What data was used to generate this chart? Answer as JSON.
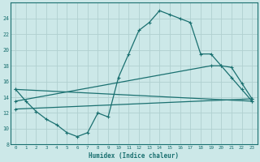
{
  "xlabel": "Humidex (Indice chaleur)",
  "xlim": [
    -0.5,
    23.5
  ],
  "ylim": [
    8,
    26
  ],
  "yticks": [
    8,
    10,
    12,
    14,
    16,
    18,
    20,
    22,
    24
  ],
  "xticks": [
    0,
    1,
    2,
    3,
    4,
    5,
    6,
    7,
    8,
    9,
    10,
    11,
    12,
    13,
    14,
    15,
    16,
    17,
    18,
    19,
    20,
    21,
    22,
    23
  ],
  "bg_color": "#cce8e8",
  "grid_color": "#b0d0d0",
  "line_color": "#1a7070",
  "curve_x": [
    0,
    1,
    2,
    3,
    4,
    5,
    6,
    7,
    8,
    9,
    10,
    11,
    12,
    13,
    14,
    15,
    16,
    17,
    18,
    19,
    20,
    21,
    22,
    23
  ],
  "curve_y": [
    15.0,
    13.5,
    12.2,
    11.2,
    10.5,
    9.5,
    9.0,
    9.5,
    12.0,
    11.5,
    16.5,
    19.5,
    22.5,
    23.5,
    25.0,
    24.5,
    24.0,
    23.5,
    19.5,
    19.5,
    18.0,
    16.5,
    15.0,
    13.5
  ],
  "line1_x": [
    0,
    23
  ],
  "line1_y": [
    15.0,
    13.5
  ],
  "line2_x": [
    0,
    19,
    20,
    21,
    22,
    23
  ],
  "line2_y": [
    13.5,
    18.0,
    18.0,
    17.8,
    15.8,
    13.8
  ],
  "line3_x": [
    0,
    23
  ],
  "line3_y": [
    12.5,
    13.8
  ]
}
